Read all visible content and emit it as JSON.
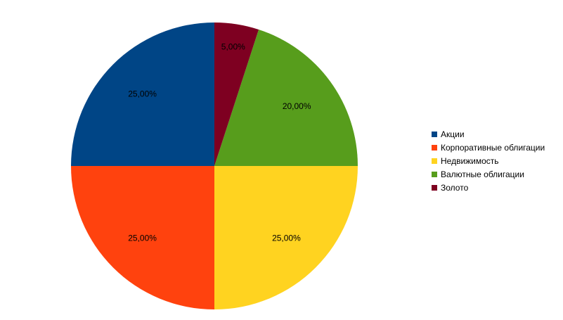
{
  "chart_data": {
    "type": "pie",
    "title": "",
    "categories": [
      "Акции",
      "Корпоративные облигации",
      "Недвижимость",
      "Валютные облигации",
      "Золото"
    ],
    "values": [
      25,
      25,
      25,
      20,
      5
    ],
    "value_labels": [
      "25,00%",
      "25,00%",
      "25,00%",
      "20,00%",
      "5,00%"
    ],
    "colors": [
      "#004586",
      "#ff420e",
      "#ffd320",
      "#579d1c",
      "#7e0021"
    ],
    "legend_position": "right"
  }
}
